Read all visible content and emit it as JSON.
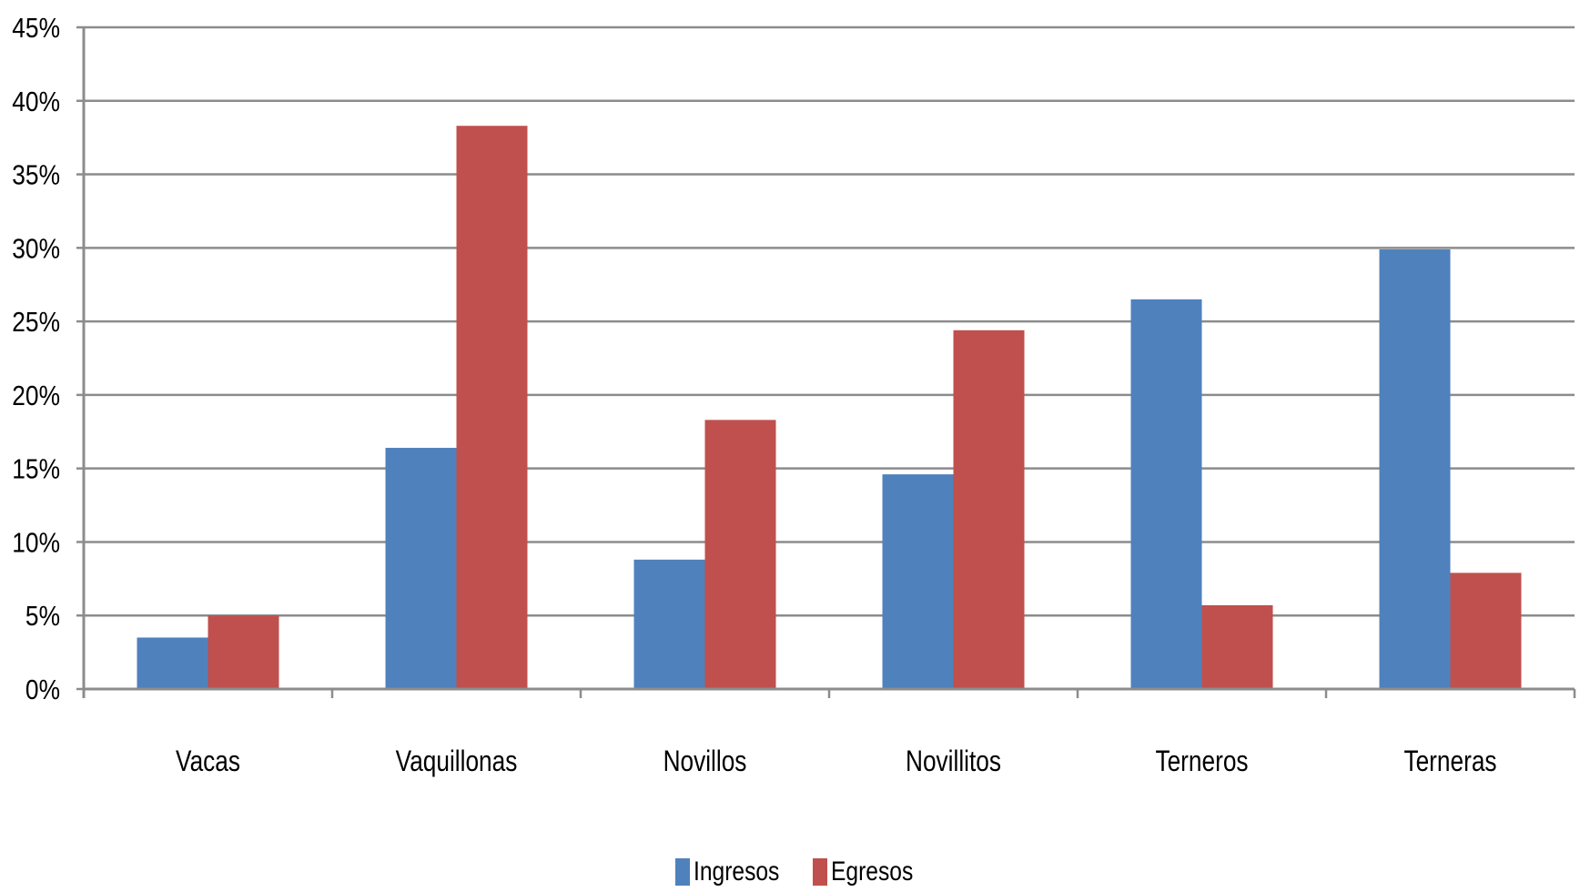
{
  "chart_data": {
    "type": "bar",
    "title": "",
    "xlabel": "",
    "ylabel": "",
    "categories": [
      "Vacas",
      "Vaquillonas",
      "Novillos",
      "Novillitos",
      "Terneros",
      "Terneras"
    ],
    "series": [
      {
        "name": "Ingresos",
        "color": "#4F81BD",
        "values": [
          3.5,
          16.4,
          8.8,
          14.6,
          26.5,
          29.9
        ]
      },
      {
        "name": "Egresos",
        "color": "#C0504D",
        "values": [
          5.0,
          38.3,
          18.3,
          24.4,
          5.7,
          7.9
        ]
      }
    ],
    "ylim": [
      0,
      45
    ],
    "ytick_values": [
      0,
      5,
      10,
      15,
      20,
      25,
      30,
      35,
      40,
      45
    ],
    "ytick_labels": [
      "0%",
      "5%",
      "10%",
      "15%",
      "20%",
      "25%",
      "30%",
      "35%",
      "40%",
      "45%"
    ],
    "grid": true,
    "legend_position": "bottom"
  }
}
